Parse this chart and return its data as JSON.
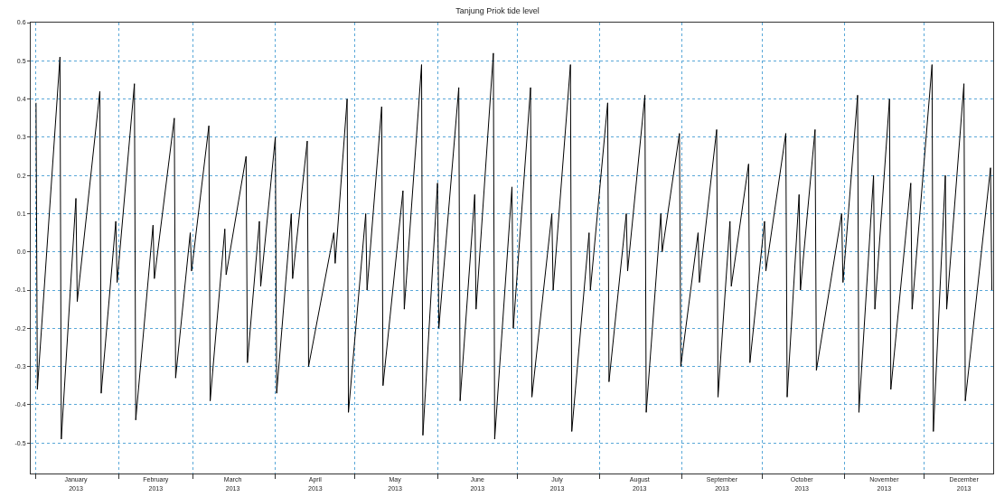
{
  "chart_data": {
    "type": "line",
    "title": "Tanjung Priok tide level",
    "x": [
      "2013-01-01",
      "2013-01-01T12:00",
      "2013-01-10",
      "2013-01-10T12:00",
      "2013-01-16",
      "2013-01-16T12:00",
      "2013-01-25",
      "2013-01-25T12:00",
      "2013-01-31",
      "2013-01-31T12:00",
      "2013-02-07",
      "2013-02-07T12:00",
      "2013-02-14",
      "2013-02-14T12:00",
      "2013-02-22",
      "2013-02-22T12:00",
      "2013-02-28",
      "2013-02-28T12:00",
      "2013-03-07",
      "2013-03-07T12:00",
      "2013-03-13",
      "2013-03-13T12:00",
      "2013-03-21",
      "2013-03-21T12:00",
      "2013-03-26",
      "2013-03-26T12:00",
      "2013-04-01",
      "2013-04-01T12:00",
      "2013-04-07",
      "2013-04-07T12:00",
      "2013-04-13",
      "2013-04-13T12:00",
      "2013-04-23",
      "2013-04-23T12:00",
      "2013-04-28",
      "2013-04-28T12:00",
      "2013-05-05",
      "2013-05-05T12:00",
      "2013-05-11",
      "2013-05-11T12:00",
      "2013-05-19",
      "2013-05-19T12:00",
      "2013-05-26",
      "2013-05-26T12:00",
      "2013-06-01",
      "2013-06-01T12:00",
      "2013-06-09",
      "2013-06-09T12:00",
      "2013-06-15",
      "2013-06-15T12:00",
      "2013-06-22",
      "2013-06-22T12:00",
      "2013-06-29",
      "2013-06-29T12:00",
      "2013-07-06",
      "2013-07-06T12:00",
      "2013-07-14",
      "2013-07-14T12:00",
      "2013-07-21",
      "2013-07-21T12:00",
      "2013-07-28",
      "2013-07-28T12:00",
      "2013-08-04",
      "2013-08-04T12:00",
      "2013-08-11",
      "2013-08-11T12:00",
      "2013-08-18",
      "2013-08-18T12:00",
      "2013-08-24",
      "2013-08-24T12:00",
      "2013-08-31",
      "2013-08-31T12:00",
      "2013-09-07",
      "2013-09-07T12:00",
      "2013-09-14",
      "2013-09-14T12:00",
      "2013-09-19",
      "2013-09-19T12:00",
      "2013-09-26",
      "2013-09-26T12:00",
      "2013-10-02",
      "2013-10-02T12:00",
      "2013-10-10",
      "2013-10-10T12:00",
      "2013-10-15",
      "2013-10-15T12:00",
      "2013-10-21",
      "2013-10-21T12:00",
      "2013-10-31",
      "2013-10-31T12:00",
      "2013-11-06",
      "2013-11-06T12:00",
      "2013-11-12",
      "2013-11-12T12:00",
      "2013-11-18",
      "2013-11-18T12:00",
      "2013-11-26",
      "2013-11-26T12:00",
      "2013-12-04",
      "2013-12-04T12:00",
      "2013-12-09",
      "2013-12-09T12:00",
      "2013-12-16",
      "2013-12-16T12:00",
      "2013-12-26",
      "2013-12-26T12:00"
    ],
    "series": [
      {
        "color": "#000000",
        "values": [
          0.39,
          -0.36,
          0.51,
          -0.49,
          0.14,
          -0.13,
          0.42,
          -0.37,
          0.08,
          -0.08,
          0.44,
          -0.44,
          0.07,
          -0.07,
          0.35,
          -0.33,
          0.05,
          -0.05,
          0.33,
          -0.39,
          0.06,
          -0.06,
          0.25,
          -0.29,
          0.08,
          -0.09,
          0.3,
          -0.37,
          0.1,
          -0.07,
          0.29,
          -0.3,
          0.05,
          -0.03,
          0.4,
          -0.42,
          0.1,
          -0.1,
          0.38,
          -0.35,
          0.16,
          -0.15,
          0.49,
          -0.48,
          0.18,
          -0.2,
          0.43,
          -0.39,
          0.15,
          -0.15,
          0.52,
          -0.49,
          0.17,
          -0.2,
          0.43,
          -0.38,
          0.1,
          -0.1,
          0.49,
          -0.47,
          0.05,
          -0.1,
          0.39,
          -0.34,
          0.1,
          -0.05,
          0.41,
          -0.42,
          0.1,
          0.0,
          0.31,
          -0.3,
          0.05,
          -0.08,
          0.32,
          -0.38,
          0.08,
          -0.09,
          0.23,
          -0.29,
          0.08,
          -0.05,
          0.31,
          -0.38,
          0.15,
          -0.1,
          0.32,
          -0.31,
          0.1,
          -0.08,
          0.41,
          -0.42,
          0.2,
          -0.15,
          0.4,
          -0.36,
          0.18,
          -0.15,
          0.49,
          -0.47,
          0.2,
          -0.15,
          0.44,
          -0.39,
          0.22,
          -0.1
        ]
      }
    ],
    "xlim": [
      "2012-12-30",
      "2013-12-27"
    ],
    "xticks": [
      {
        "value": "2013-01-01",
        "label": null
      },
      {
        "value": "2013-01-16",
        "label": "January\n2013"
      },
      {
        "value": "2013-02-01",
        "label": null
      },
      {
        "value": "2013-02-15",
        "label": "February\n2013"
      },
      {
        "value": "2013-03-01",
        "label": null
      },
      {
        "value": "2013-03-16",
        "label": "March\n2013"
      },
      {
        "value": "2013-04-01",
        "label": null
      },
      {
        "value": "2013-04-16",
        "label": "April\n2013"
      },
      {
        "value": "2013-05-01",
        "label": null
      },
      {
        "value": "2013-05-16",
        "label": "May\n2013"
      },
      {
        "value": "2013-06-01",
        "label": null
      },
      {
        "value": "2013-06-16",
        "label": "June\n2013"
      },
      {
        "value": "2013-07-01",
        "label": null
      },
      {
        "value": "2013-07-16",
        "label": "July\n2013"
      },
      {
        "value": "2013-08-01",
        "label": null
      },
      {
        "value": "2013-08-16",
        "label": "August\n2013"
      },
      {
        "value": "2013-09-01",
        "label": null
      },
      {
        "value": "2013-09-16",
        "label": "September\n2013"
      },
      {
        "value": "2013-10-01",
        "label": null
      },
      {
        "value": "2013-10-16",
        "label": "October\n2013"
      },
      {
        "value": "2013-11-01",
        "label": null
      },
      {
        "value": "2013-11-16",
        "label": "November\n2013"
      },
      {
        "value": "2013-12-01",
        "label": null
      },
      {
        "value": "2013-12-16",
        "label": "December\n2013"
      }
    ],
    "ylim": [
      -0.58,
      0.6
    ],
    "yticks": [
      0.6,
      0.5,
      0.4,
      0.3,
      0.2,
      0.1,
      {
        "value": 0,
        "label": "0.0"
      },
      -0.1,
      -0.2,
      -0.3,
      -0.4,
      -0.5
    ],
    "grid": true,
    "marker": "none",
    "line_style": "solid"
  }
}
